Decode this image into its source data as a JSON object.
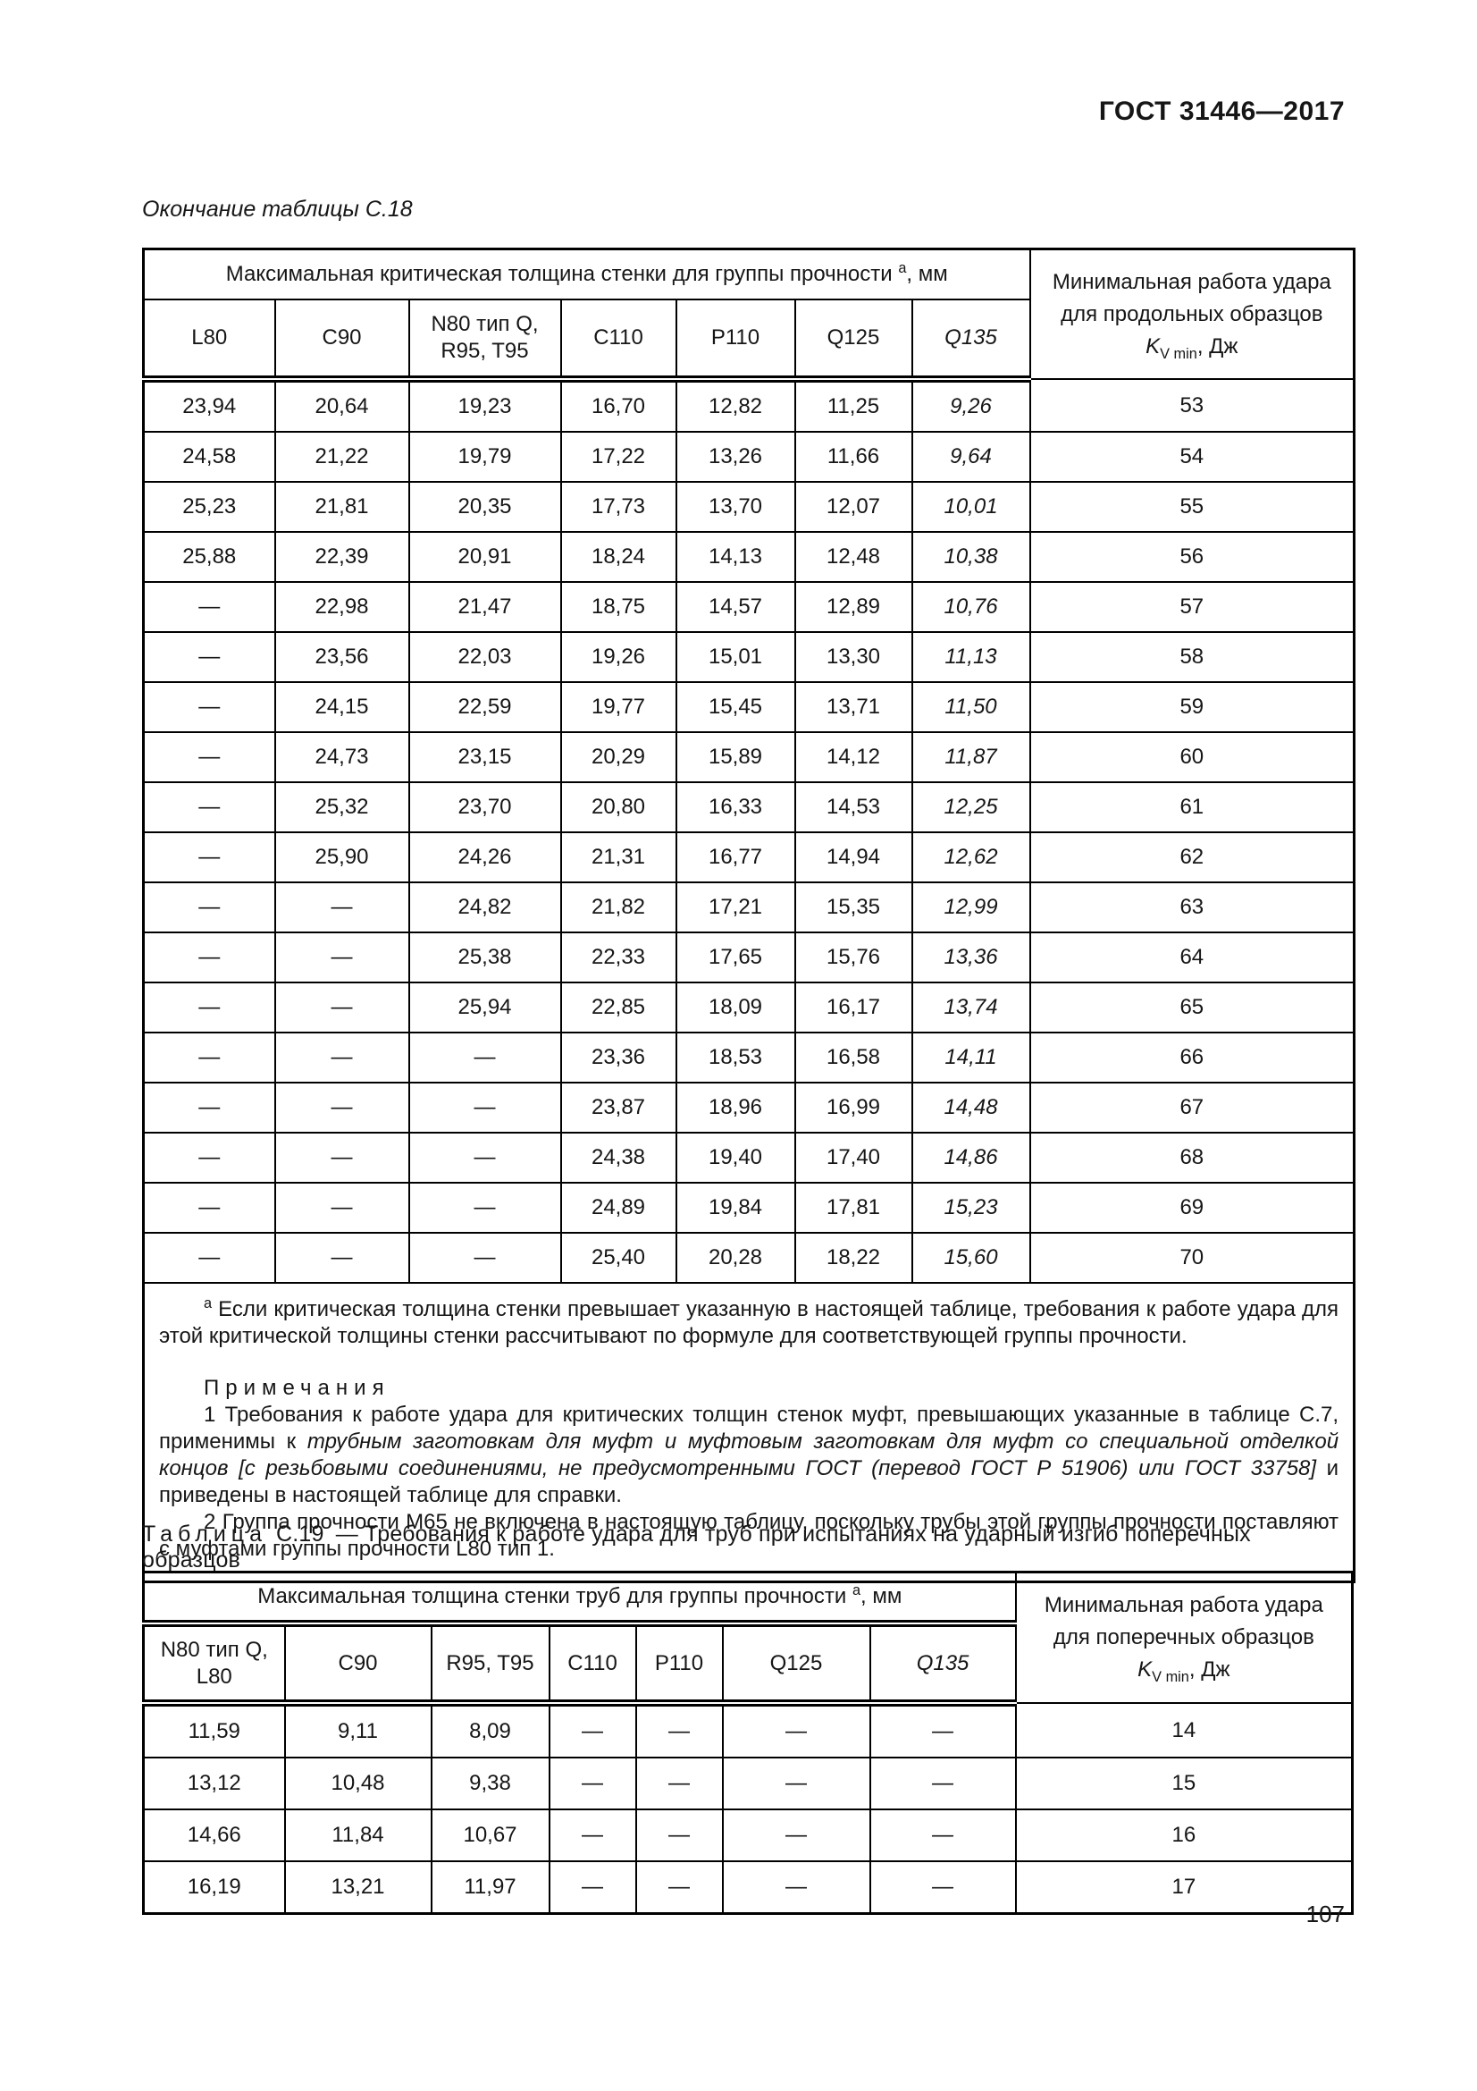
{
  "page": {
    "standard_ref": "ГОСТ 31446—2017",
    "page_number": "107"
  },
  "table_c18": {
    "caption": "Окончание таблицы С.18",
    "header": {
      "span_title": "Максимальная критическая толщина стенки для группы прочности",
      "footnote_mark": "а",
      "span_unit": ", мм",
      "kv_line1": "Минимальная работа удара",
      "kv_line2": "для продольных образцов",
      "kv_symbol": "K",
      "kv_subscript": "V min",
      "kv_unit": ", Дж",
      "columns": [
        "L80",
        "C90",
        "N80 тип Q,\nR95, T95",
        "C110",
        "P110",
        "Q125",
        "Q135"
      ]
    },
    "rows": [
      [
        "23,94",
        "20,64",
        "19,23",
        "16,70",
        "12,82",
        "11,25",
        "9,26",
        "53"
      ],
      [
        "24,58",
        "21,22",
        "19,79",
        "17,22",
        "13,26",
        "11,66",
        "9,64",
        "54"
      ],
      [
        "25,23",
        "21,81",
        "20,35",
        "17,73",
        "13,70",
        "12,07",
        "10,01",
        "55"
      ],
      [
        "25,88",
        "22,39",
        "20,91",
        "18,24",
        "14,13",
        "12,48",
        "10,38",
        "56"
      ],
      [
        "—",
        "22,98",
        "21,47",
        "18,75",
        "14,57",
        "12,89",
        "10,76",
        "57"
      ],
      [
        "—",
        "23,56",
        "22,03",
        "19,26",
        "15,01",
        "13,30",
        "11,13",
        "58"
      ],
      [
        "—",
        "24,15",
        "22,59",
        "19,77",
        "15,45",
        "13,71",
        "11,50",
        "59"
      ],
      [
        "—",
        "24,73",
        "23,15",
        "20,29",
        "15,89",
        "14,12",
        "11,87",
        "60"
      ],
      [
        "—",
        "25,32",
        "23,70",
        "20,80",
        "16,33",
        "14,53",
        "12,25",
        "61"
      ],
      [
        "—",
        "25,90",
        "24,26",
        "21,31",
        "16,77",
        "14,94",
        "12,62",
        "62"
      ],
      [
        "—",
        "—",
        "24,82",
        "21,82",
        "17,21",
        "15,35",
        "12,99",
        "63"
      ],
      [
        "—",
        "—",
        "25,38",
        "22,33",
        "17,65",
        "15,76",
        "13,36",
        "64"
      ],
      [
        "—",
        "—",
        "25,94",
        "22,85",
        "18,09",
        "16,17",
        "13,74",
        "65"
      ],
      [
        "—",
        "—",
        "—",
        "23,36",
        "18,53",
        "16,58",
        "14,11",
        "66"
      ],
      [
        "—",
        "—",
        "—",
        "23,87",
        "18,96",
        "16,99",
        "14,48",
        "67"
      ],
      [
        "—",
        "—",
        "—",
        "24,38",
        "19,40",
        "17,40",
        "14,86",
        "68"
      ],
      [
        "—",
        "—",
        "—",
        "24,89",
        "19,84",
        "17,81",
        "15,23",
        "69"
      ],
      [
        "—",
        "—",
        "—",
        "25,40",
        "20,28",
        "18,22",
        "15,60",
        "70"
      ]
    ],
    "footnote": {
      "mark": "а",
      "text": "Если критическая толщина стенки превышает указанную в настоящей таблице, требования к работе удара для этой критической толщины стенки рассчитывают по формуле для соответствующей группы прочности."
    },
    "notes": {
      "title": "Примечания",
      "note1_plain1": "1 Требования к работе удара для критических толщин стенок муфт, превышающих указанные в таблице С.7, применимы к ",
      "note1_italic": "трубным заготовкам для муфт и муфтовым заготовкам для муфт со специальной отделкой концов [с резьбовыми соединениями, не предусмотренными ГОСТ (перевод ГОСТ Р 51906) или ГОСТ 33758]",
      "note1_plain2": " и приведены в настоящей таблице для справки.",
      "note2": "2 Группа прочности М65 не включена в настоящую таблицу, поскольку трубы этой группы прочности поставляют с муфтами группы прочности L80 тип 1."
    }
  },
  "table_c19": {
    "caption_label": "Таблица",
    "caption_id": "С.19",
    "caption_rest": "— Требования к работе удара для труб при испытаниях на ударный изгиб поперечных образцов",
    "header": {
      "span_title": "Максимальная толщина стенки труб для группы прочности",
      "footnote_mark": "а",
      "span_unit": ", мм",
      "kv_line1": "Минимальная работа удара",
      "kv_line2": "для поперечных образцов",
      "kv_symbol": "K",
      "kv_subscript": "V min",
      "kv_unit": ", Дж",
      "columns": [
        "N80 тип Q,\nL80",
        "C90",
        "R95, T95",
        "C110",
        "P110",
        "Q125",
        "Q135"
      ]
    },
    "rows": [
      [
        "11,59",
        "9,11",
        "8,09",
        "—",
        "—",
        "—",
        "—",
        "14"
      ],
      [
        "13,12",
        "10,48",
        "9,38",
        "—",
        "—",
        "—",
        "—",
        "15"
      ],
      [
        "14,66",
        "11,84",
        "10,67",
        "—",
        "—",
        "—",
        "—",
        "16"
      ],
      [
        "16,19",
        "13,21",
        "11,97",
        "—",
        "—",
        "—",
        "—",
        "17"
      ]
    ]
  }
}
